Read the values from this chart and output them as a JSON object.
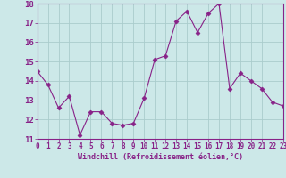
{
  "x": [
    0,
    1,
    2,
    3,
    4,
    5,
    6,
    7,
    8,
    9,
    10,
    11,
    12,
    13,
    14,
    15,
    16,
    17,
    18,
    19,
    20,
    21,
    22,
    23
  ],
  "y": [
    14.5,
    13.8,
    12.6,
    13.2,
    11.2,
    12.4,
    12.4,
    11.8,
    11.7,
    11.8,
    13.1,
    15.1,
    15.3,
    17.1,
    17.6,
    16.5,
    17.5,
    18.0,
    13.6,
    14.4,
    14.0,
    13.6,
    12.9,
    12.7
  ],
  "xlim": [
    0,
    23
  ],
  "ylim": [
    11,
    18
  ],
  "yticks": [
    11,
    12,
    13,
    14,
    15,
    16,
    17,
    18
  ],
  "xticks": [
    0,
    1,
    2,
    3,
    4,
    5,
    6,
    7,
    8,
    9,
    10,
    11,
    12,
    13,
    14,
    15,
    16,
    17,
    18,
    19,
    20,
    21,
    22,
    23
  ],
  "xlabel": "Windchill (Refroidissement éolien,°C)",
  "line_color": "#882288",
  "marker": "D",
  "marker_size": 2.5,
  "bg_color": "#cce8e8",
  "grid_color": "#aacccc",
  "tick_color": "#882288",
  "label_color": "#882288",
  "font_family": "monospace",
  "xlabel_fontsize": 6.0,
  "ytick_fontsize": 6.5,
  "xtick_fontsize": 5.5
}
